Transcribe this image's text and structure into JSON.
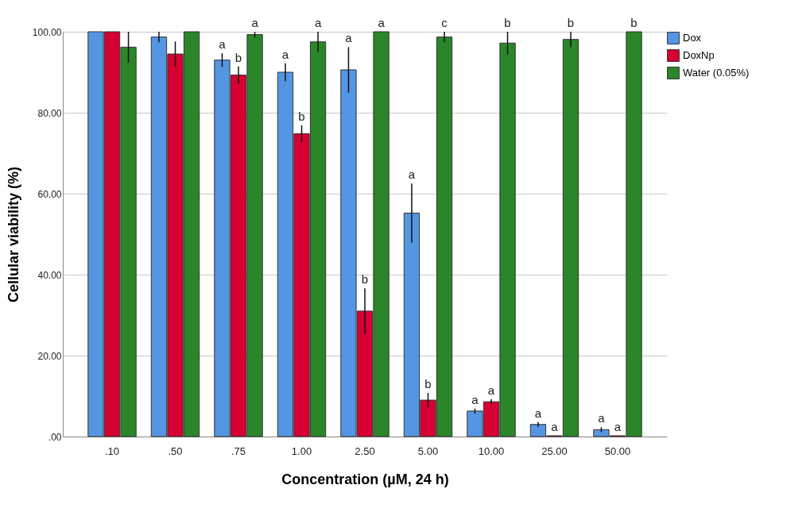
{
  "chart_data": {
    "type": "bar",
    "xlabel": "Concentration (µM, 24 h)",
    "ylabel": "Cellular viability (%)",
    "categories": [
      ".10",
      ".50",
      ".75",
      "1.00",
      "2.50",
      "5.00",
      "10.00",
      "25.00",
      "50.00"
    ],
    "ylim": [
      0,
      100
    ],
    "yticks": [
      {
        "value": 0,
        "label": ".00"
      },
      {
        "value": 20,
        "label": "20.00"
      },
      {
        "value": 40,
        "label": "40.00"
      },
      {
        "value": 60,
        "label": "60.00"
      },
      {
        "value": 80,
        "label": "80.00"
      },
      {
        "value": 100,
        "label": "100.00"
      }
    ],
    "grid": "y",
    "legend": "top right",
    "series": [
      {
        "name": "Dox",
        "color": "#5596e3",
        "values": [
          100,
          98.7,
          93.0,
          90.0,
          90.6,
          55.2,
          6.3,
          3.0,
          1.7
        ],
        "errors": [
          null,
          1.3,
          1.7,
          2.2,
          5.6,
          7.3,
          0.6,
          0.6,
          0.6
        ],
        "value_labels": [
          null,
          null,
          "a",
          "a",
          "a",
          "a",
          "a",
          "a",
          "a"
        ]
      },
      {
        "name": "DoxNp",
        "color": "#d60032",
        "values": [
          100,
          94.5,
          89.3,
          74.8,
          31.0,
          9.0,
          8.6,
          0.2,
          0.2
        ],
        "errors": [
          null,
          3.1,
          2.1,
          2.1,
          5.6,
          1.8,
          0.6,
          null,
          null
        ],
        "value_labels": [
          null,
          null,
          "b",
          "b",
          "b",
          "b",
          "a",
          "a",
          "a"
        ]
      },
      {
        "name": "Water (0.05%)",
        "color": "#2a8629",
        "values": [
          96.2,
          100,
          99.3,
          97.5,
          100,
          98.7,
          97.2,
          98.1,
          100
        ],
        "errors": [
          3.8,
          null,
          0.7,
          2.5,
          null,
          1.3,
          2.8,
          1.9,
          null
        ],
        "value_labels": [
          null,
          null,
          "a",
          "a",
          "a",
          "c",
          "b",
          "b",
          "b"
        ]
      }
    ]
  }
}
